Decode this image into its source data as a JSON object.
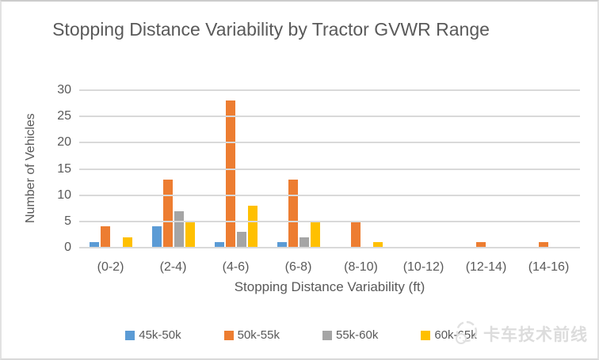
{
  "chart_data": {
    "type": "bar",
    "title": "Stopping Distance Variability by Tractor GVWR Range",
    "xlabel": "Stopping Distance Variability (ft)",
    "ylabel": "Number of Vehicles",
    "categories": [
      "(0-2)",
      "(2-4)",
      "(4-6)",
      "(6-8)",
      "(8-10)",
      "(10-12)",
      "(12-14)",
      "(14-16)"
    ],
    "series": [
      {
        "name": "45k-50k",
        "color": "#5B9BD5",
        "values": [
          1,
          4,
          1,
          1,
          0,
          0,
          0,
          0
        ]
      },
      {
        "name": "50k-55k",
        "color": "#ED7D31",
        "values": [
          4,
          13,
          28,
          13,
          5,
          0,
          1,
          1
        ]
      },
      {
        "name": "55k-60k",
        "color": "#A5A5A5",
        "values": [
          0,
          7,
          3,
          2,
          0,
          0,
          0,
          0
        ]
      },
      {
        "name": "60k-65k",
        "color": "#FFC000",
        "values": [
          2,
          5,
          8,
          5,
          1,
          0,
          0,
          0
        ]
      }
    ],
    "ylim": [
      0,
      30
    ],
    "ytick_step": 5,
    "grid": true,
    "legend_position": "bottom",
    "axis_color": "#595959",
    "gridline_color": "#D9D9D9"
  },
  "watermark": {
    "text": "卡车技术前线"
  }
}
